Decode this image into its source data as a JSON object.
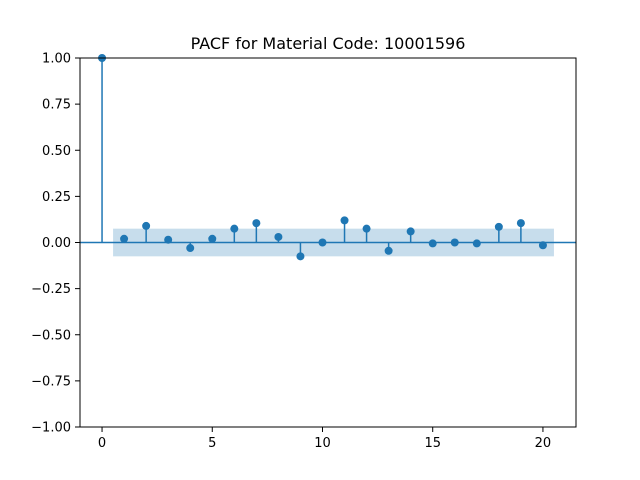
{
  "chart_data": {
    "type": "stem",
    "title": "PACF for Material Code: 10001596",
    "xlabel": "",
    "ylabel": "",
    "xlim": [
      -1,
      21.5
    ],
    "ylim": [
      -1.0,
      1.0
    ],
    "x_ticks": [
      0,
      5,
      10,
      15,
      20
    ],
    "x_tick_labels": [
      "0",
      "5",
      "10",
      "15",
      "20"
    ],
    "y_ticks": [
      1.0,
      0.75,
      0.5,
      0.25,
      0.0,
      -0.25,
      -0.5,
      -0.75,
      -1.0
    ],
    "y_tick_labels": [
      "1.00",
      "0.75",
      "0.50",
      "0.25",
      "0.00",
      "−0.25",
      "−0.50",
      "−0.75",
      "−1.00"
    ],
    "lags": [
      0,
      1,
      2,
      3,
      4,
      5,
      6,
      7,
      8,
      9,
      10,
      11,
      12,
      13,
      14,
      15,
      16,
      17,
      18,
      19,
      20
    ],
    "values": [
      1.0,
      0.02,
      0.09,
      0.015,
      -0.03,
      0.02,
      0.075,
      0.105,
      0.03,
      -0.075,
      0.0,
      0.12,
      0.075,
      -0.045,
      0.06,
      -0.005,
      0.0,
      -0.005,
      0.085,
      0.105,
      -0.015
    ],
    "confidence_band": {
      "x_range": [
        0.5,
        20.5
      ],
      "lower": -0.075,
      "upper": 0.075
    },
    "colors": {
      "stem": "#1f77b4",
      "band": "#1f77b4",
      "zero_line": "#1f77b4"
    }
  }
}
